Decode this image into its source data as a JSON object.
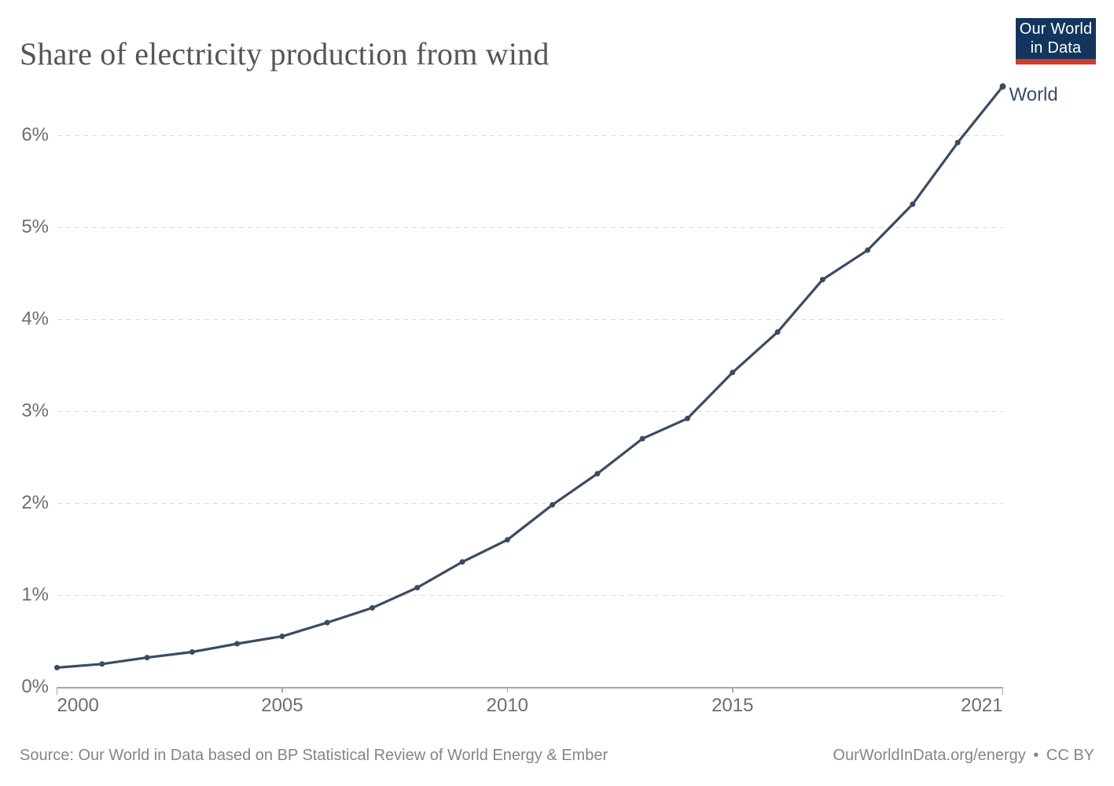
{
  "header": {
    "title": "Share of electricity production from wind"
  },
  "logo": {
    "line1": "Our World",
    "line2": "in Data"
  },
  "chart_data": {
    "type": "line",
    "title": "Share of electricity production from wind",
    "xlabel": "",
    "ylabel": "",
    "x": [
      2000,
      2001,
      2002,
      2003,
      2004,
      2005,
      2006,
      2007,
      2008,
      2009,
      2010,
      2011,
      2012,
      2013,
      2014,
      2015,
      2016,
      2017,
      2018,
      2019,
      2020,
      2021
    ],
    "series": [
      {
        "name": "World",
        "color": "#3A4C63",
        "values": [
          0.21,
          0.25,
          0.32,
          0.38,
          0.47,
          0.55,
          0.7,
          0.86,
          1.08,
          1.36,
          1.6,
          1.98,
          2.32,
          2.7,
          2.92,
          3.42,
          3.86,
          4.43,
          4.75,
          5.25,
          5.92,
          6.53
        ]
      }
    ],
    "xlim": [
      2000,
      2021
    ],
    "ylim": [
      0,
      6.8
    ],
    "yticks": [
      {
        "value": 0,
        "label": "0%"
      },
      {
        "value": 1,
        "label": "1%"
      },
      {
        "value": 2,
        "label": "2%"
      },
      {
        "value": 3,
        "label": "3%"
      },
      {
        "value": 4,
        "label": "4%"
      },
      {
        "value": 5,
        "label": "5%"
      },
      {
        "value": 6,
        "label": "6%"
      }
    ],
    "xticks": [
      {
        "value": 2000,
        "label": "2000"
      },
      {
        "value": 2005,
        "label": "2005"
      },
      {
        "value": 2010,
        "label": "2010"
      },
      {
        "value": 2015,
        "label": "2015"
      },
      {
        "value": 2021,
        "label": "2021"
      }
    ],
    "grid": "horizontal-dashed",
    "legend": "line-end-label"
  },
  "footer": {
    "source": "Source: Our World in Data based on BP Statistical Review of World Energy & Ember",
    "credit_url": "OurWorldInData.org/energy",
    "separator": "•",
    "license": "CC BY"
  },
  "colors": {
    "line_color": "#3A4C63",
    "grid_color": "#DDDDDD",
    "axis_color": "#A6A6A6",
    "tick_label_color": "#6E6E6E",
    "title_color": "#555555",
    "footer_color": "#858585",
    "logo_bg": "#12355E",
    "logo_accent": "#D13B2E",
    "background": "#FFFFFF"
  }
}
